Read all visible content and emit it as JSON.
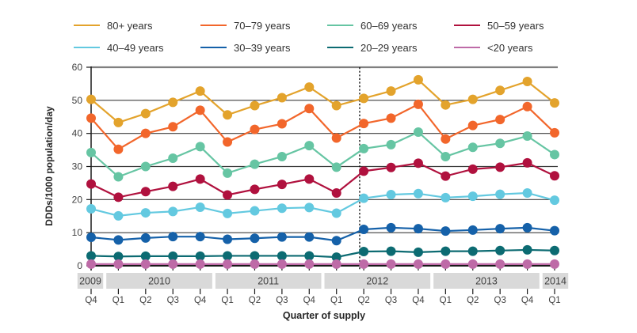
{
  "chart_data": {
    "type": "line",
    "xlabel": "Quarter of supply",
    "ylabel": "DDDs/1000 population/day",
    "ylim": [
      0,
      60
    ],
    "yticks": [
      0,
      10,
      20,
      30,
      40,
      50,
      60
    ],
    "grid": true,
    "legend_position": "top",
    "x_quarters": [
      "Q4",
      "Q1",
      "Q2",
      "Q3",
      "Q4",
      "Q1",
      "Q2",
      "Q3",
      "Q4",
      "Q1",
      "Q2",
      "Q3",
      "Q4",
      "Q1",
      "Q2",
      "Q3",
      "Q4",
      "Q1"
    ],
    "year_bands": [
      {
        "label": "2009",
        "first_quarter_index": 0,
        "last_quarter_index": 0
      },
      {
        "label": "2010",
        "first_quarter_index": 1,
        "last_quarter_index": 4
      },
      {
        "label": "2011",
        "first_quarter_index": 5,
        "last_quarter_index": 8
      },
      {
        "label": "2012",
        "first_quarter_index": 9,
        "last_quarter_index": 12
      },
      {
        "label": "2013",
        "first_quarter_index": 13,
        "last_quarter_index": 16
      },
      {
        "label": "2014",
        "first_quarter_index": 17,
        "last_quarter_index": 17
      }
    ],
    "annotation_line": {
      "style": "dashed",
      "between_indices": [
        9,
        10
      ],
      "fraction": 0.85
    },
    "series": [
      {
        "name": "80+ years",
        "color": "#E3A32C",
        "values": [
          50.3,
          43.3,
          46.0,
          49.4,
          52.8,
          45.6,
          48.4,
          50.8,
          54.0,
          48.4,
          50.6,
          52.8,
          56.2,
          48.6,
          50.3,
          53.0,
          55.7,
          49.2
        ]
      },
      {
        "name": "70–79 years",
        "color": "#F2662B",
        "values": [
          44.6,
          35.2,
          40.0,
          42.0,
          47.0,
          37.4,
          41.2,
          42.9,
          47.5,
          38.6,
          43.0,
          44.6,
          48.8,
          38.3,
          42.4,
          44.2,
          48.1,
          40.2
        ]
      },
      {
        "name": "60–69 years",
        "color": "#66C5A3",
        "values": [
          34.2,
          26.9,
          30.0,
          32.5,
          36.0,
          28.0,
          30.7,
          33.0,
          36.3,
          29.8,
          35.4,
          36.6,
          40.4,
          33.0,
          35.8,
          37.0,
          39.2,
          33.6
        ]
      },
      {
        "name": "50–59 years",
        "color": "#B0113E",
        "values": [
          24.7,
          20.7,
          22.4,
          24.0,
          26.2,
          21.4,
          23.1,
          24.6,
          26.2,
          22.0,
          28.6,
          29.7,
          31.0,
          27.1,
          29.2,
          29.8,
          31.1,
          27.2
        ]
      },
      {
        "name": "40–49 years",
        "color": "#63C9E0",
        "values": [
          17.2,
          15.1,
          16.0,
          16.4,
          17.7,
          15.8,
          16.6,
          17.4,
          17.6,
          15.9,
          20.4,
          21.5,
          21.8,
          20.6,
          21.0,
          21.6,
          22.0,
          19.8
        ]
      },
      {
        "name": "30–39 years",
        "color": "#1561A9",
        "values": [
          8.6,
          7.8,
          8.4,
          8.8,
          8.8,
          8.0,
          8.3,
          8.7,
          8.7,
          7.6,
          11.0,
          11.5,
          11.2,
          10.5,
          10.8,
          11.2,
          11.5,
          10.6
        ]
      },
      {
        "name": "20–29 years",
        "color": "#0C6B72",
        "values": [
          3.0,
          2.8,
          2.9,
          2.9,
          2.9,
          3.0,
          3.0,
          3.0,
          3.0,
          2.6,
          4.3,
          4.4,
          4.1,
          4.4,
          4.4,
          4.6,
          4.8,
          4.6
        ]
      },
      {
        "name": "<20 years",
        "color": "#BE6BA7",
        "values": [
          0.5,
          0.5,
          0.5,
          0.5,
          0.5,
          0.5,
          0.5,
          0.5,
          0.5,
          0.5,
          0.5,
          0.5,
          0.5,
          0.5,
          0.5,
          0.5,
          0.5,
          0.5
        ]
      }
    ],
    "colors": {
      "grid": "#3d3d3d",
      "top_border": "#7f7f7f",
      "axis": "#1a1a1a",
      "year_band_bg": "#d9d9d9",
      "tick_label": "#404040",
      "dashed_line": "#111111"
    }
  }
}
